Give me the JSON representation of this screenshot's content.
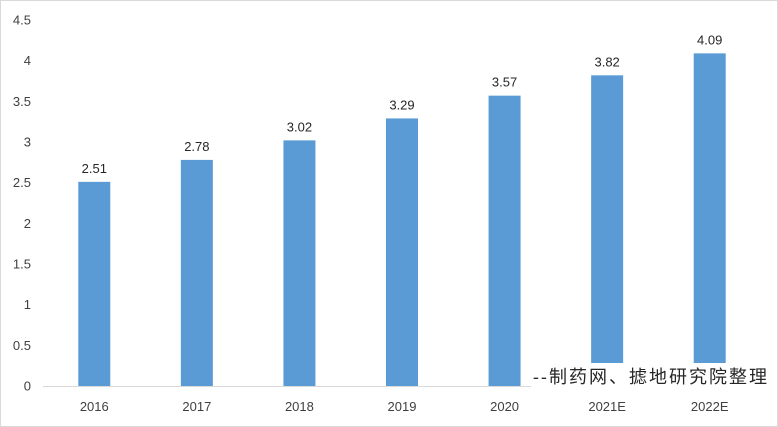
{
  "chart_data": {
    "type": "bar",
    "title": "",
    "xlabel": "",
    "ylabel": "",
    "categories": [
      "2016",
      "2017",
      "2018",
      "2019",
      "2020",
      "2021E",
      "2022E"
    ],
    "values": [
      2.51,
      2.78,
      3.02,
      3.29,
      3.57,
      3.82,
      4.09
    ],
    "data_labels": [
      "2.51",
      "2.78",
      "3.02",
      "3.29",
      "3.57",
      "3.82",
      "4.09"
    ],
    "ylim": [
      0,
      4.5
    ],
    "yticks": [
      0,
      0.5,
      1,
      1.5,
      2,
      2.5,
      3,
      3.5,
      4,
      4.5
    ],
    "ytick_labels": [
      "0",
      "0.5",
      "1",
      "1.5",
      "2",
      "2.5",
      "3",
      "3.5",
      "4",
      "4.5"
    ],
    "grid": false,
    "legend": "none",
    "bar_color": "#5b9bd5"
  },
  "watermark": {
    "text": "--制药网、摅地研究院整理"
  }
}
